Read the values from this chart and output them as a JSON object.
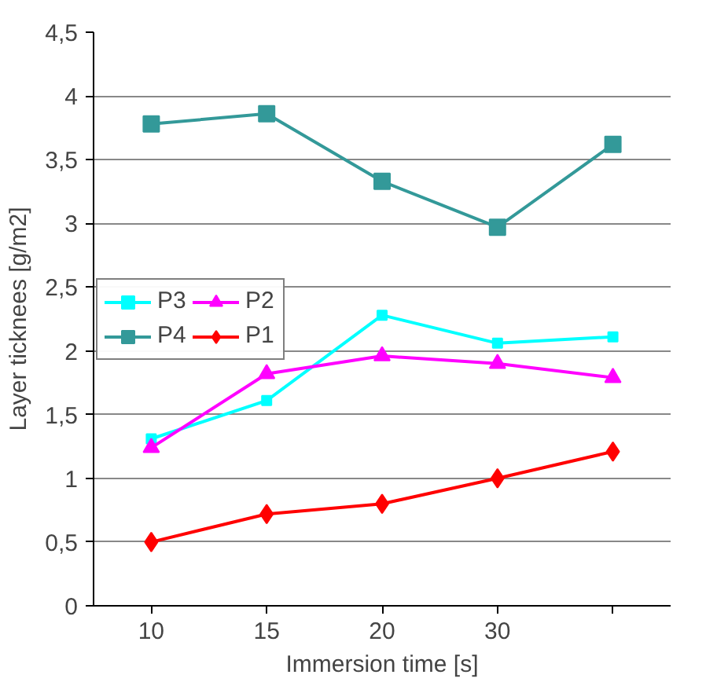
{
  "chart_data": {
    "type": "line",
    "xlabel": "Immersion time [s]",
    "ylabel": "Layer ticknees [g/m2]",
    "categories": [
      "10",
      "15",
      "20",
      "30",
      null
    ],
    "series": [
      {
        "name": "P3",
        "color": "#00ffff",
        "marker": "square",
        "values": [
          1.31,
          1.61,
          2.28,
          2.06,
          2.11
        ]
      },
      {
        "name": "P4",
        "color": "#339999",
        "marker": "square",
        "values": [
          3.78,
          3.86,
          3.33,
          2.97,
          3.62
        ]
      },
      {
        "name": "P2",
        "color": "#ff00ff",
        "marker": "triangle",
        "values": [
          1.24,
          1.82,
          1.96,
          1.9,
          1.79
        ]
      },
      {
        "name": "P1",
        "color": "#ff0000",
        "marker": "diamond",
        "values": [
          0.5,
          0.72,
          0.8,
          1.0,
          1.21
        ]
      }
    ],
    "ylim": [
      0,
      4.5
    ],
    "yticks": [
      0,
      {
        "value": 0.5,
        "label": "0,5"
      },
      1,
      {
        "value": 1.5,
        "label": "1,5"
      },
      2,
      {
        "value": 2.5,
        "label": "2,5"
      },
      3,
      {
        "value": 3.5,
        "label": "3,5"
      },
      4,
      {
        "value": 4.5,
        "label": "4,5"
      }
    ],
    "grid": "y",
    "legend": "left"
  }
}
